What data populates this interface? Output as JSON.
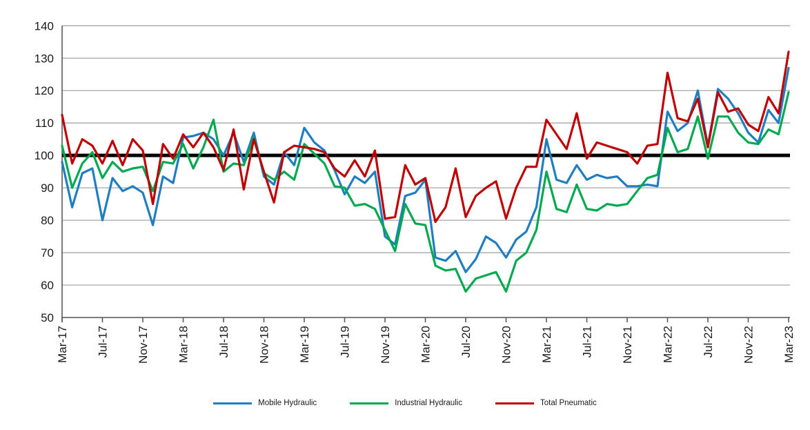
{
  "chart_data": {
    "type": "line",
    "title": "",
    "xlabel": "",
    "ylabel": "",
    "ylim": [
      50,
      140
    ],
    "ytick_step": 10,
    "y_tick_labels": [
      "140",
      "130",
      "120",
      "110",
      "100",
      "90",
      "80",
      "70",
      "60",
      "50"
    ],
    "grid": true,
    "legend_position": "bottom",
    "reference_line": {
      "value": 100,
      "color": "#000000"
    },
    "colors": {
      "grid": "#a6a6a6",
      "axis": "#595959",
      "blue": "#1f7ec1",
      "green": "#00a94f",
      "red": "#c00000"
    },
    "x": [
      "Mar-17",
      "Apr-17",
      "May-17",
      "Jun-17",
      "Jul-17",
      "Aug-17",
      "Sep-17",
      "Oct-17",
      "Nov-17",
      "Dec-17",
      "Jan-18",
      "Feb-18",
      "Mar-18",
      "Apr-18",
      "May-18",
      "Jun-18",
      "Jul-18",
      "Aug-18",
      "Sep-18",
      "Oct-18",
      "Nov-18",
      "Dec-18",
      "Jan-19",
      "Feb-19",
      "Mar-19",
      "Apr-19",
      "May-19",
      "Jun-19",
      "Jul-19",
      "Aug-19",
      "Sep-19",
      "Oct-19",
      "Nov-19",
      "Dec-19",
      "Jan-20",
      "Feb-20",
      "Mar-20",
      "Apr-20",
      "May-20",
      "Jun-20",
      "Jul-20",
      "Aug-20",
      "Sep-20",
      "Oct-20",
      "Nov-20",
      "Dec-20",
      "Jan-21",
      "Feb-21",
      "Mar-21",
      "Apr-21",
      "May-21",
      "Jun-21",
      "Jul-21",
      "Aug-21",
      "Sep-21",
      "Oct-21",
      "Nov-21",
      "Dec-21",
      "Jan-22",
      "Feb-22",
      "Mar-22",
      "Apr-22",
      "May-22",
      "Jun-22",
      "Jul-22",
      "Aug-22",
      "Sep-22",
      "Oct-22",
      "Nov-22",
      "Dec-22",
      "Jan-23",
      "Feb-23",
      "Mar-23"
    ],
    "x_labels_shown": [
      "Mar-17",
      "Jul-17",
      "Nov-17",
      "Mar-18",
      "Jul-18",
      "Nov-18",
      "Mar-19",
      "Jul-19",
      "Nov-19",
      "Mar-20",
      "Jul-20",
      "Nov-20",
      "Mar-21",
      "Jul-21",
      "Nov-21",
      "Mar-22",
      "Jul-22",
      "Nov-22",
      "Mar-23"
    ],
    "series": [
      {
        "name": "Mobile Hydraulic",
        "color": "#1f7ec1",
        "values": [
          98,
          84,
          94.5,
          96,
          80,
          93,
          89,
          90.5,
          88.5,
          78.5,
          93.5,
          91.5,
          105.5,
          106,
          107,
          105,
          100,
          107,
          98,
          107,
          93.5,
          91,
          101,
          97,
          108.5,
          104,
          101.5,
          95.5,
          88,
          93.5,
          91.5,
          95,
          75,
          72.5,
          87.5,
          88.5,
          92.5,
          68.5,
          67.5,
          70.5,
          64,
          68,
          75,
          73,
          68.5,
          74,
          76.5,
          84,
          105,
          92.5,
          91.5,
          97,
          92.5,
          94,
          93,
          93.5,
          90.5,
          90.5,
          91,
          90.5,
          113.5,
          107.5,
          110,
          120,
          103,
          120.5,
          117.5,
          113,
          107,
          104,
          114,
          110,
          127
        ]
      },
      {
        "name": "Industrial Hydraulic",
        "color": "#00a94f",
        "values": [
          103,
          90,
          97.5,
          101,
          93,
          98,
          95,
          96,
          96.5,
          89,
          98,
          97.5,
          103.5,
          96,
          102.5,
          111,
          95,
          97.5,
          97,
          105.5,
          94.5,
          92.5,
          95,
          92.5,
          103.5,
          100.5,
          97.5,
          90.5,
          90,
          84.5,
          85,
          83.5,
          77,
          70.5,
          85,
          79,
          78.5,
          66,
          64.5,
          65,
          58,
          62,
          63,
          64,
          58,
          67.5,
          70,
          77,
          95,
          83.5,
          82.5,
          91,
          83.5,
          83,
          85,
          84.5,
          85,
          89,
          93,
          94,
          108.5,
          101,
          102,
          112,
          99,
          112,
          112,
          107,
          104,
          103.5,
          108,
          106.5,
          119.5
        ]
      },
      {
        "name": "Total Pneumatic",
        "color": "#c00000",
        "values": [
          112.5,
          97.5,
          105,
          103,
          97.5,
          104.5,
          97,
          105,
          101.5,
          85,
          103.5,
          99,
          106.5,
          102.5,
          107,
          102.5,
          95.5,
          108,
          89.5,
          105,
          95,
          85.5,
          101,
          103,
          102.5,
          102,
          101,
          96,
          93.5,
          98.5,
          93.5,
          101.5,
          80.5,
          81,
          97,
          91,
          93,
          79.5,
          84,
          96,
          81,
          87.5,
          90,
          92,
          80.5,
          90,
          96.5,
          96.5,
          111,
          106.5,
          102,
          113,
          99,
          104,
          103,
          102,
          101,
          97.5,
          103,
          103.5,
          125.5,
          111.5,
          110.5,
          117.5,
          102.5,
          119.5,
          113.5,
          114.5,
          109.5,
          107.5,
          118,
          113,
          132
        ]
      }
    ]
  }
}
